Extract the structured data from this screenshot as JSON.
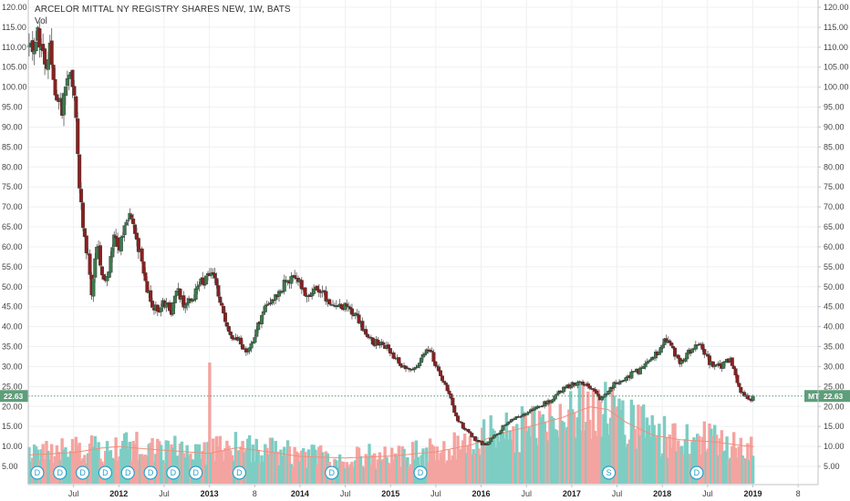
{
  "chart_data": {
    "type": "candlestick",
    "title": "ARCELOR MITTAL NY REGISTRY SHARES NEW, 1W, BATS",
    "volume_label": "Vol",
    "symbol": "MT",
    "last_price": "22.63",
    "ylim": [
      0.0,
      122.0
    ],
    "y_ticks": [
      "5.00",
      "10.00",
      "15.00",
      "20.00",
      "25.00",
      "30.00",
      "35.00",
      "40.00",
      "45.00",
      "50.00",
      "55.00",
      "60.00",
      "65.00",
      "70.00",
      "75.00",
      "80.00",
      "85.00",
      "90.00",
      "95.00",
      "100.00",
      "105.00",
      "110.00",
      "115.00",
      "120.00"
    ],
    "x_ticks": [
      {
        "label": "Jul",
        "t": 2011.5,
        "bold": false
      },
      {
        "label": "2012",
        "t": 2012.0,
        "bold": true
      },
      {
        "label": "Jul",
        "t": 2012.5,
        "bold": false
      },
      {
        "label": "2013",
        "t": 2013.0,
        "bold": true
      },
      {
        "label": "8",
        "t": 2013.5,
        "bold": false
      },
      {
        "label": "2014",
        "t": 2014.0,
        "bold": true
      },
      {
        "label": "Jul",
        "t": 2014.5,
        "bold": false
      },
      {
        "label": "2015",
        "t": 2015.0,
        "bold": true
      },
      {
        "label": "Jul",
        "t": 2015.5,
        "bold": false
      },
      {
        "label": "2016",
        "t": 2016.0,
        "bold": true
      },
      {
        "label": "Jul",
        "t": 2016.5,
        "bold": false
      },
      {
        "label": "2017",
        "t": 2017.0,
        "bold": true
      },
      {
        "label": "Jul",
        "t": 2017.5,
        "bold": false
      },
      {
        "label": "2018",
        "t": 2018.0,
        "bold": true
      },
      {
        "label": "Jul",
        "t": 2018.5,
        "bold": false
      },
      {
        "label": "2019",
        "t": 2019.0,
        "bold": true
      },
      {
        "label": "8",
        "t": 2019.5,
        "bold": false
      }
    ],
    "price_path": [
      [
        2011.05,
        110
      ],
      [
        2011.12,
        113
      ],
      [
        2011.18,
        106
      ],
      [
        2011.25,
        110
      ],
      [
        2011.3,
        98
      ],
      [
        2011.38,
        95
      ],
      [
        2011.45,
        105
      ],
      [
        2011.5,
        99
      ],
      [
        2011.53,
        93
      ],
      [
        2011.56,
        74
      ],
      [
        2011.59,
        70
      ],
      [
        2011.62,
        62
      ],
      [
        2011.66,
        58
      ],
      [
        2011.7,
        48
      ],
      [
        2011.76,
        62
      ],
      [
        2011.82,
        53
      ],
      [
        2011.88,
        52
      ],
      [
        2011.94,
        63
      ],
      [
        2012.0,
        60
      ],
      [
        2012.05,
        64
      ],
      [
        2012.12,
        67
      ],
      [
        2012.18,
        63
      ],
      [
        2012.25,
        57
      ],
      [
        2012.3,
        50
      ],
      [
        2012.36,
        46
      ],
      [
        2012.42,
        44
      ],
      [
        2012.5,
        46
      ],
      [
        2012.58,
        44
      ],
      [
        2012.65,
        49
      ],
      [
        2012.72,
        45
      ],
      [
        2012.78,
        47
      ],
      [
        2012.84,
        48
      ],
      [
        2012.9,
        51
      ],
      [
        2012.96,
        52
      ],
      [
        2013.04,
        53
      ],
      [
        2013.12,
        47
      ],
      [
        2013.18,
        40
      ],
      [
        2013.24,
        37
      ],
      [
        2013.3,
        38
      ],
      [
        2013.36,
        35
      ],
      [
        2013.42,
        34
      ],
      [
        2013.48,
        37
      ],
      [
        2013.55,
        41
      ],
      [
        2013.62,
        45
      ],
      [
        2013.7,
        47
      ],
      [
        2013.78,
        49
      ],
      [
        2013.85,
        52
      ],
      [
        2013.92,
        52
      ],
      [
        2014.0,
        51
      ],
      [
        2014.1,
        47
      ],
      [
        2014.18,
        49
      ],
      [
        2014.26,
        48
      ],
      [
        2014.34,
        46
      ],
      [
        2014.42,
        46
      ],
      [
        2014.5,
        45
      ],
      [
        2014.58,
        44
      ],
      [
        2014.66,
        41
      ],
      [
        2014.74,
        38
      ],
      [
        2014.82,
        36
      ],
      [
        2014.9,
        36
      ],
      [
        2014.98,
        34
      ],
      [
        2015.06,
        32
      ],
      [
        2015.14,
        30
      ],
      [
        2015.2,
        29
      ],
      [
        2015.28,
        30
      ],
      [
        2015.35,
        32
      ],
      [
        2015.4,
        35
      ],
      [
        2015.46,
        33
      ],
      [
        2015.52,
        29
      ],
      [
        2015.58,
        26
      ],
      [
        2015.64,
        24
      ],
      [
        2015.7,
        19
      ],
      [
        2015.76,
        16
      ],
      [
        2015.84,
        14
      ],
      [
        2015.92,
        12
      ],
      [
        2016.0,
        11
      ],
      [
        2016.06,
        10
      ],
      [
        2016.12,
        12
      ],
      [
        2016.18,
        13
      ],
      [
        2016.24,
        15
      ],
      [
        2016.3,
        16
      ],
      [
        2016.36,
        17
      ],
      [
        2016.42,
        17
      ],
      [
        2016.48,
        18
      ],
      [
        2016.56,
        19
      ],
      [
        2016.64,
        20
      ],
      [
        2016.72,
        21
      ],
      [
        2016.8,
        22
      ],
      [
        2016.88,
        24
      ],
      [
        2016.96,
        25
      ],
      [
        2017.04,
        26
      ],
      [
        2017.1,
        26
      ],
      [
        2017.18,
        25
      ],
      [
        2017.26,
        24
      ],
      [
        2017.32,
        22
      ],
      [
        2017.38,
        23
      ],
      [
        2017.44,
        25
      ],
      [
        2017.5,
        26
      ],
      [
        2017.58,
        27
      ],
      [
        2017.66,
        28
      ],
      [
        2017.74,
        29
      ],
      [
        2017.8,
        30
      ],
      [
        2017.86,
        31
      ],
      [
        2017.92,
        33
      ],
      [
        2018.0,
        35
      ],
      [
        2018.04,
        37
      ],
      [
        2018.1,
        35
      ],
      [
        2018.16,
        32
      ],
      [
        2018.22,
        31
      ],
      [
        2018.28,
        33
      ],
      [
        2018.34,
        35
      ],
      [
        2018.4,
        36
      ],
      [
        2018.46,
        34
      ],
      [
        2018.52,
        31
      ],
      [
        2018.58,
        30
      ],
      [
        2018.64,
        30
      ],
      [
        2018.7,
        31
      ],
      [
        2018.74,
        32
      ],
      [
        2018.78,
        30
      ],
      [
        2018.82,
        27
      ],
      [
        2018.86,
        24
      ],
      [
        2018.9,
        23
      ],
      [
        2018.94,
        22
      ],
      [
        2018.98,
        21
      ],
      [
        2019.02,
        22.63
      ]
    ],
    "volume_peak": {
      "t": 2013.01,
      "value": 32.0
    },
    "volume_ma_path": [
      [
        2011.0,
        7.6
      ],
      [
        2011.5,
        8.2
      ],
      [
        2011.8,
        9.4
      ],
      [
        2012.0,
        9.8
      ],
      [
        2012.3,
        9.2
      ],
      [
        2012.7,
        8.5
      ],
      [
        2013.0,
        8.0
      ],
      [
        2013.3,
        9.5
      ],
      [
        2013.6,
        8.6
      ],
      [
        2014.0,
        7.2
      ],
      [
        2014.5,
        6.8
      ],
      [
        2015.0,
        7.3
      ],
      [
        2015.5,
        8.4
      ],
      [
        2015.9,
        10.3
      ],
      [
        2016.2,
        13.2
      ],
      [
        2016.6,
        15.5
      ],
      [
        2016.9,
        17.5
      ],
      [
        2017.2,
        20.3
      ],
      [
        2017.4,
        19.6
      ],
      [
        2017.6,
        16.2
      ],
      [
        2017.9,
        12.8
      ],
      [
        2018.2,
        11.6
      ],
      [
        2018.6,
        11.0
      ],
      [
        2018.9,
        10.0
      ],
      [
        2019.02,
        9.8
      ]
    ],
    "events": [
      {
        "label": "D",
        "t": 2011.1
      },
      {
        "label": "D",
        "t": 2011.35
      },
      {
        "label": "D",
        "t": 2011.6
      },
      {
        "label": "D",
        "t": 2011.85
      },
      {
        "label": "D",
        "t": 2012.1
      },
      {
        "label": "D",
        "t": 2012.35
      },
      {
        "label": "D",
        "t": 2012.6
      },
      {
        "label": "D",
        "t": 2012.85
      },
      {
        "label": "D",
        "t": 2013.33
      },
      {
        "label": "D",
        "t": 2014.35
      },
      {
        "label": "D",
        "t": 2015.33
      },
      {
        "label": "S",
        "t": 2017.41
      },
      {
        "label": "D",
        "t": 2018.38
      }
    ],
    "colors": {
      "up": "#53b987",
      "down": "#eb4d5c",
      "up_vol": "#7dcdc3",
      "down_vol": "#f4a4a0",
      "price_line": "#4a9a70",
      "vol_ma": "#f28c7a",
      "grid": "#eef0f3",
      "tag_bg": "#5e9e7a",
      "event": "#2aa0c8"
    }
  }
}
